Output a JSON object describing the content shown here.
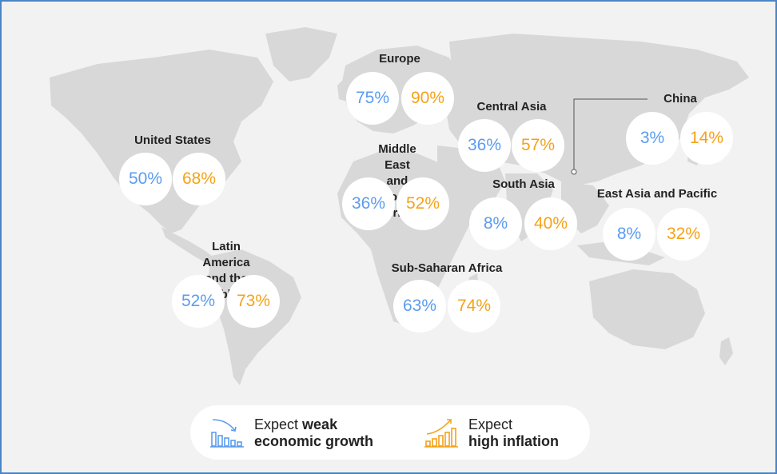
{
  "regions": [
    {
      "name": "United States",
      "weak_growth": "50%",
      "high_inflation": "68%"
    },
    {
      "name": "Latin America\nand the Caribbean",
      "weak_growth": "52%",
      "high_inflation": "73%"
    },
    {
      "name": "Europe",
      "weak_growth": "75%",
      "high_inflation": "90%"
    },
    {
      "name": "Middle East and\nNorth Africa",
      "weak_growth": "36%",
      "high_inflation": "52%"
    },
    {
      "name": "Sub-Saharan Africa",
      "weak_growth": "63%",
      "high_inflation": "74%"
    },
    {
      "name": "Central Asia",
      "weak_growth": "36%",
      "high_inflation": "57%"
    },
    {
      "name": "South Asia",
      "weak_growth": "8%",
      "high_inflation": "40%"
    },
    {
      "name": "China",
      "weak_growth": "3%",
      "high_inflation": "14%"
    },
    {
      "name": "East Asia and Pacific",
      "weak_growth": "8%",
      "high_inflation": "32%"
    }
  ],
  "legend": {
    "weak": {
      "prefix": "Expect",
      "bold_1": "weak",
      "bold_2": "economic growth",
      "icon": "declining-bar-chart-icon",
      "color": "#5b9cf0"
    },
    "inflation": {
      "prefix": "Expect",
      "bold": "high inflation",
      "icon": "rising-bar-chart-icon",
      "color": "#f5a219"
    }
  },
  "colors": {
    "weak_growth": "#5b9cf0",
    "high_inflation": "#f5a219",
    "land": "#d9d9d9",
    "border": "#4a86c5"
  }
}
